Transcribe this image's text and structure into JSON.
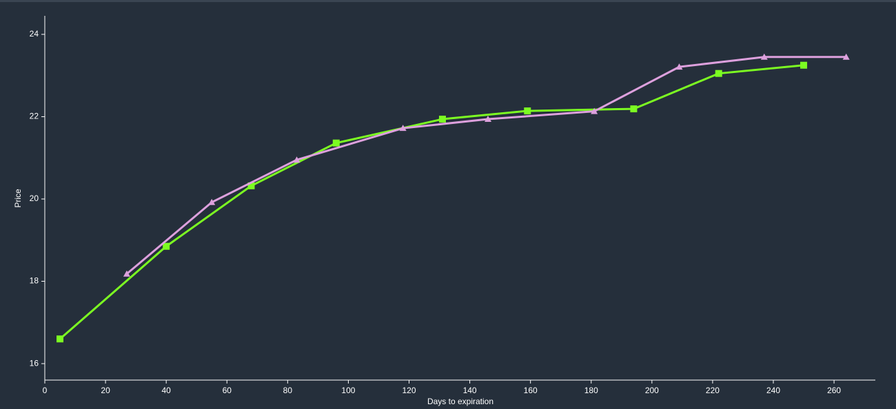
{
  "chart_data": {
    "type": "line",
    "x_label": "Days to expiration",
    "y_label": "Price",
    "xlim": [
      0,
      273.6
    ],
    "ylim": [
      15.6,
      24.45
    ],
    "xticks": [
      0,
      20,
      40,
      60,
      80,
      100,
      120,
      140,
      160,
      180,
      200,
      220,
      240,
      260
    ],
    "yticks": [
      16,
      18,
      20,
      22,
      24
    ],
    "series": [
      {
        "color": "#7cfc22",
        "marker": "square",
        "x": [
          5,
          40,
          68,
          96,
          131,
          159,
          194,
          222,
          250
        ],
        "values": [
          16.6,
          18.85,
          20.32,
          21.36,
          21.94,
          22.14,
          22.19,
          23.05,
          23.25
        ]
      },
      {
        "color": "#dda0dd",
        "marker": "triangle",
        "x": [
          27,
          55,
          83,
          118,
          146,
          181,
          209,
          237,
          264
        ],
        "values": [
          18.18,
          19.92,
          20.95,
          21.72,
          21.94,
          22.13,
          23.21,
          23.45,
          23.45
        ]
      }
    ]
  }
}
